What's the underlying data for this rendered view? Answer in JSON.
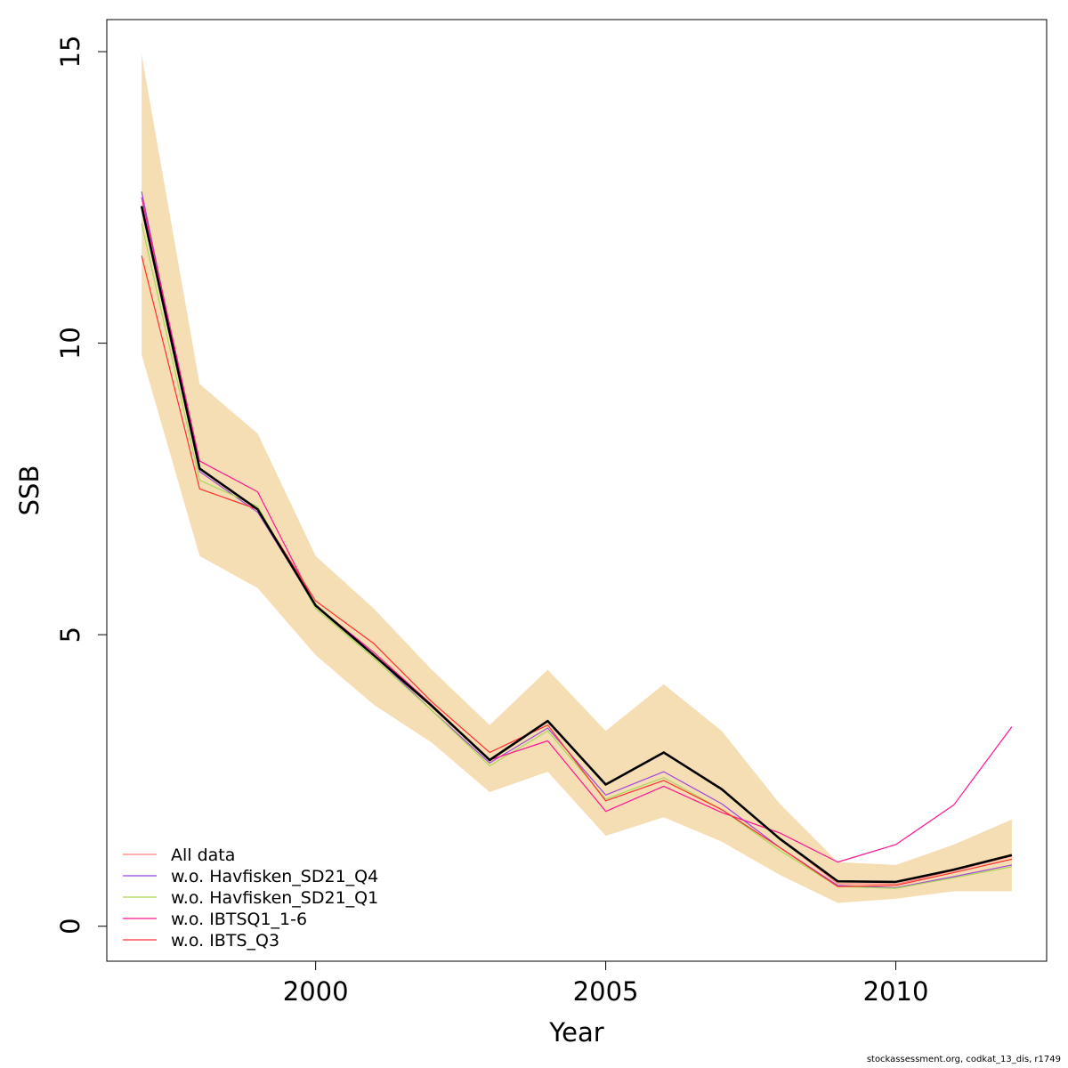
{
  "chart_data": {
    "type": "line",
    "title": "",
    "xlabel": "Year",
    "ylabel": "SSB",
    "xlim": [
      1996.4,
      2012.6
    ],
    "ylim": [
      -0.6,
      15.55
    ],
    "x_ticks": [
      2000,
      2005,
      2010
    ],
    "y_ticks": [
      0,
      5,
      10,
      15
    ],
    "grid": false,
    "legend_position": "bottom-left",
    "years": [
      1997,
      1998,
      1999,
      2000,
      2001,
      2002,
      2003,
      2004,
      2005,
      2006,
      2007,
      2008,
      2009,
      2010,
      2011,
      2012
    ],
    "confidence_band": {
      "color": "#F5DEB3",
      "upper": [
        14.95,
        9.3,
        8.45,
        6.35,
        5.45,
        4.4,
        3.45,
        4.4,
        3.35,
        4.15,
        3.35,
        2.1,
        1.1,
        1.05,
        1.4,
        1.83
      ],
      "lower": [
        9.8,
        6.35,
        5.8,
        4.65,
        3.8,
        3.15,
        2.3,
        2.65,
        1.55,
        1.87,
        1.45,
        0.88,
        0.4,
        0.47,
        0.6,
        0.6
      ]
    },
    "series": [
      {
        "name": "All data",
        "color": "#FF7F7F",
        "values": [
          12.35,
          7.85,
          7.15,
          5.5,
          4.65,
          3.78,
          2.85,
          3.52,
          2.43,
          2.98,
          2.35,
          1.5,
          0.73,
          0.72,
          0.95,
          1.2
        ]
      },
      {
        "name": "w.o. Havfisken_SD21_Q4",
        "color": "#A046D8",
        "values": [
          12.6,
          7.8,
          7.1,
          5.5,
          4.65,
          3.7,
          2.8,
          3.4,
          2.25,
          2.65,
          2.1,
          1.35,
          0.7,
          0.66,
          0.85,
          1.05
        ]
      },
      {
        "name": "w.o. Havfisken_SD21_Q1",
        "color": "#A8D85C",
        "values": [
          12.05,
          7.65,
          7.2,
          5.45,
          4.6,
          3.7,
          2.75,
          3.35,
          2.18,
          2.55,
          2.0,
          1.3,
          0.68,
          0.65,
          0.83,
          1.02
        ]
      },
      {
        "name": "w.o. IBTSQ1_1-6",
        "color": "#FF1493",
        "values": [
          12.5,
          7.98,
          7.45,
          5.5,
          4.7,
          3.8,
          2.85,
          3.18,
          1.97,
          2.4,
          1.95,
          1.6,
          1.1,
          1.4,
          2.08,
          3.42
        ]
      },
      {
        "name": "w.o. IBTS_Q3",
        "color": "#FF3030",
        "values": [
          11.5,
          7.5,
          7.15,
          5.58,
          4.85,
          3.85,
          2.98,
          3.45,
          2.15,
          2.5,
          2.0,
          1.35,
          0.68,
          0.7,
          0.92,
          1.15
        ]
      },
      {
        "name": "",
        "color": "#000000",
        "values": [
          12.35,
          7.85,
          7.15,
          5.5,
          4.65,
          3.78,
          2.85,
          3.52,
          2.43,
          2.98,
          2.35,
          1.5,
          0.77,
          0.76,
          0.97,
          1.22
        ]
      }
    ]
  },
  "footer": "stockassessment.org, codkat_13_dis, r1749"
}
